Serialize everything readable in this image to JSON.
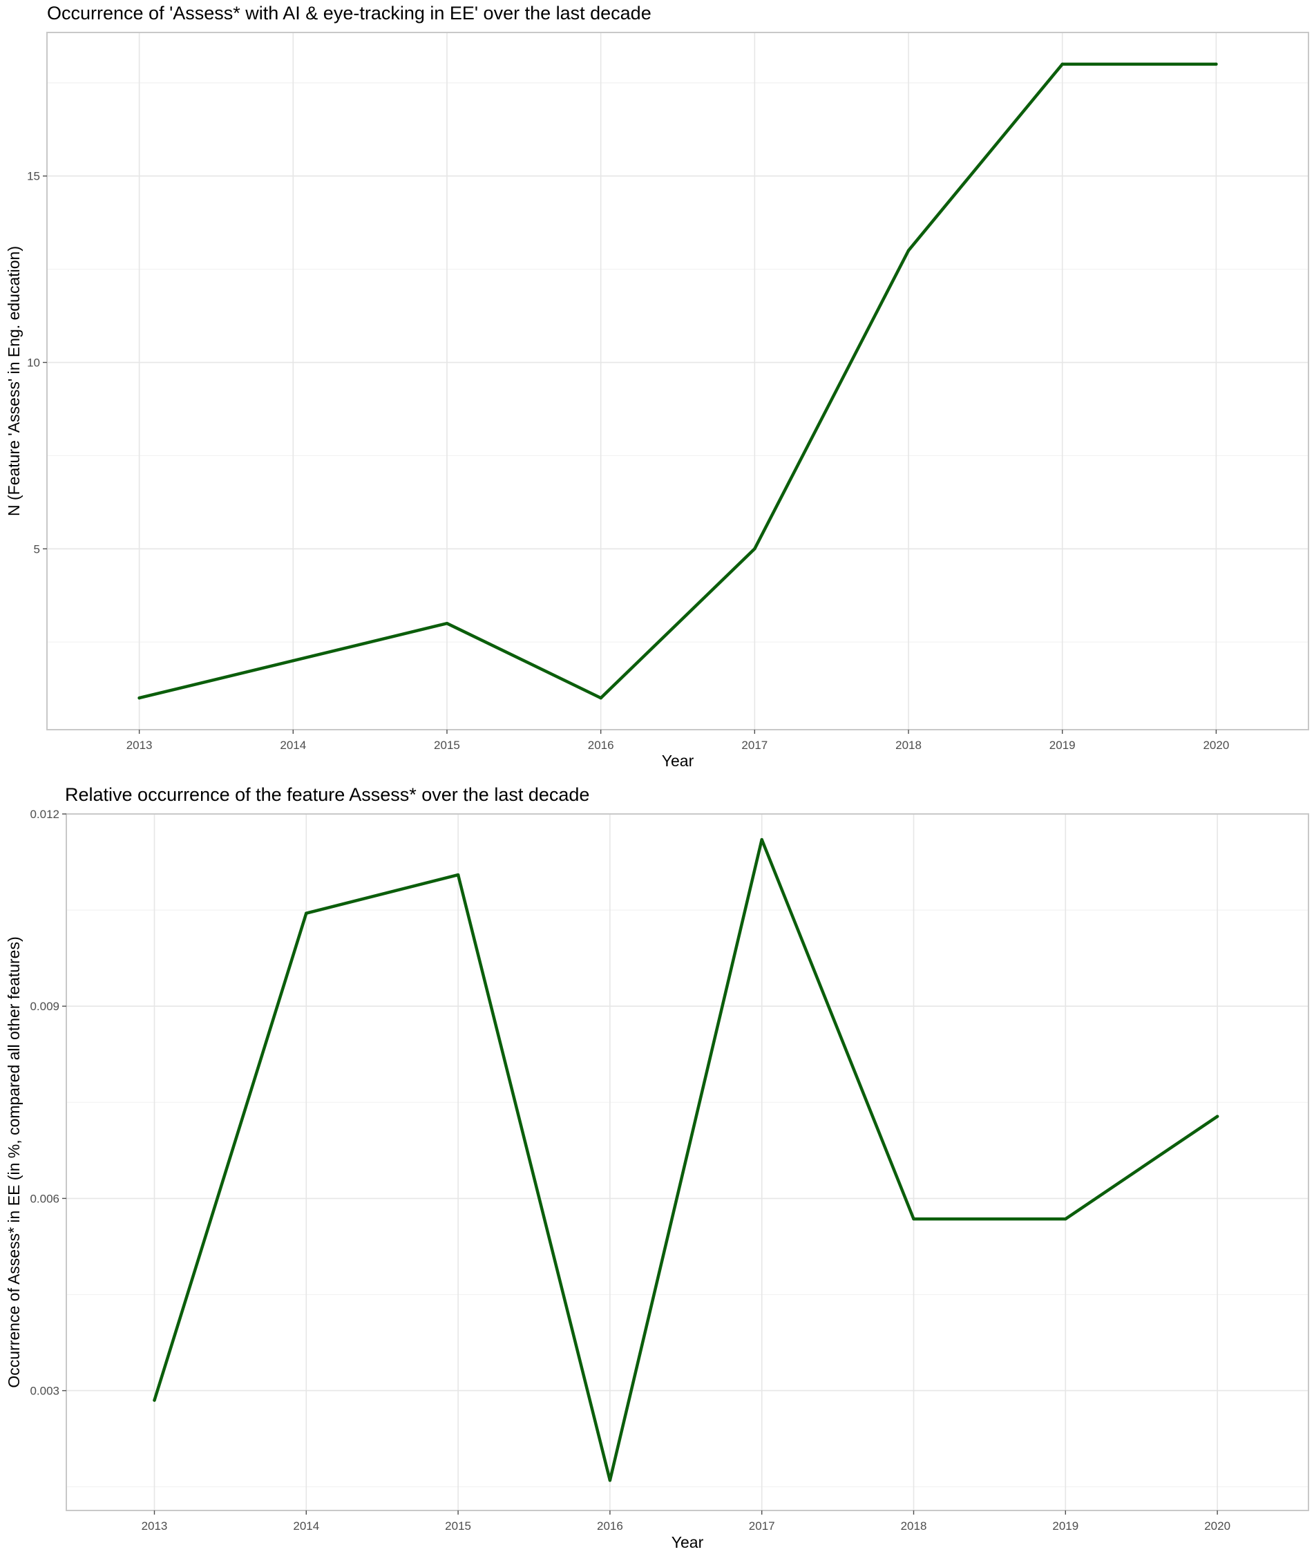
{
  "chart_data": [
    {
      "type": "line",
      "title": "Occurrence of 'Assess* with AI & eye-tracking in EE' over the last decade",
      "xlabel": "Year",
      "ylabel": "N (Feature 'Assess' in Eng. education)",
      "x": [
        2013,
        2014,
        2015,
        2016,
        2017,
        2018,
        2019,
        2020
      ],
      "series": [
        {
          "values": [
            1,
            2,
            3,
            1,
            5,
            13,
            18,
            18
          ],
          "color": "#0b5e0b"
        }
      ],
      "x_ticks": [
        "2013",
        "2014",
        "2015",
        "2016",
        "2017",
        "2018",
        "2019",
        "2020"
      ],
      "y_ticks": [
        5,
        10,
        15
      ],
      "y_tick_labels": [
        "5",
        "10",
        "15"
      ],
      "xlim": [
        2012.4,
        2020.6
      ],
      "ylim": [
        0.15,
        18.85
      ],
      "grid": true,
      "legend": "none"
    },
    {
      "type": "line",
      "title": "Relative occurrence of the feature Assess* over the last decade",
      "xlabel": "Year",
      "ylabel": "Occurrence of Assess* in EE (in %, compared all other features)",
      "x": [
        2013,
        2014,
        2015,
        2016,
        2017,
        2018,
        2019,
        2020
      ],
      "series": [
        {
          "values": [
            0.00285,
            0.01045,
            0.01105,
            0.0016,
            0.0116,
            0.00568,
            0.00568,
            0.00728
          ],
          "color": "#0b5e0b"
        }
      ],
      "x_ticks": [
        "2013",
        "2014",
        "2015",
        "2016",
        "2017",
        "2018",
        "2019",
        "2020"
      ],
      "y_ticks": [
        0.003,
        0.006,
        0.009,
        0.012
      ],
      "y_tick_labels": [
        "0.003",
        "0.006",
        "0.009",
        "0.012"
      ],
      "xlim": [
        2012.42,
        2020.6
      ],
      "ylim": [
        0.00113,
        0.012
      ],
      "grid": true,
      "legend": "none"
    }
  ]
}
